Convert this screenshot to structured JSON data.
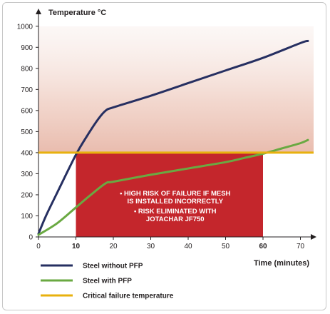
{
  "chart_data": {
    "type": "line",
    "title": "",
    "ylabel": "Temperature °C",
    "xlabel": "Time (minutes)",
    "xlim": [
      0,
      72
    ],
    "ylim": [
      0,
      1050
    ],
    "x_ticks": [
      0,
      10,
      20,
      30,
      40,
      50,
      60,
      70
    ],
    "x_ticks_bold": [
      10,
      60
    ],
    "y_ticks": [
      0,
      100,
      200,
      300,
      400,
      500,
      600,
      700,
      800,
      900,
      1000
    ],
    "series": [
      {
        "name": "Steel without PFP",
        "color": "#262f61",
        "points": [
          [
            0,
            15
          ],
          [
            2,
            100
          ],
          [
            5,
            210
          ],
          [
            10,
            390
          ],
          [
            13,
            480
          ],
          [
            16,
            560
          ],
          [
            18,
            600
          ],
          [
            20,
            615
          ],
          [
            30,
            670
          ],
          [
            40,
            730
          ],
          [
            50,
            790
          ],
          [
            60,
            850
          ],
          [
            70,
            920
          ],
          [
            72,
            930
          ]
        ]
      },
      {
        "name": "Steel with PFP",
        "color": "#6aa942",
        "points": [
          [
            0,
            10
          ],
          [
            5,
            65
          ],
          [
            10,
            140
          ],
          [
            14,
            200
          ],
          [
            18,
            255
          ],
          [
            20,
            262
          ],
          [
            30,
            295
          ],
          [
            40,
            325
          ],
          [
            50,
            355
          ],
          [
            55,
            375
          ],
          [
            60,
            395
          ],
          [
            65,
            420
          ],
          [
            70,
            445
          ],
          [
            72,
            460
          ]
        ]
      },
      {
        "name": "Critical failure temperature",
        "color": "#e8b10e",
        "points": [
          [
            0,
            400
          ],
          [
            72,
            400
          ]
        ]
      }
    ],
    "risk_region": {
      "x_range": [
        10,
        60
      ],
      "y_range": [
        0,
        400
      ],
      "color": "#c4262c",
      "notes": [
        "• HIGH RISK OF FAILURE IF MESH",
        "IS INSTALLED INCORRECTLY",
        "• RISK ELIMINATED WITH",
        "JOTACHAR JF750"
      ]
    },
    "grid": false,
    "legend_position": "bottom-left"
  }
}
